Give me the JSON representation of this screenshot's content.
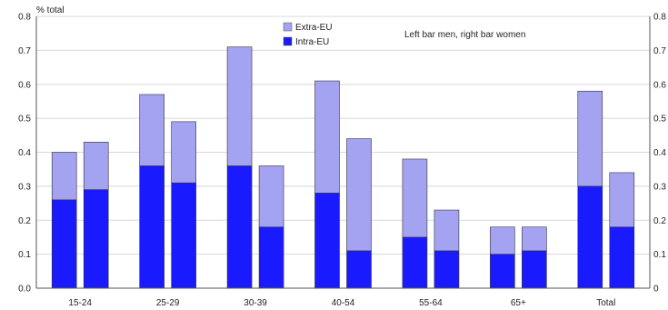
{
  "chart_data": {
    "type": "bar",
    "stacked": true,
    "ylabel": "% total",
    "annotation": "Left bar men, right bar women",
    "ylim": [
      0,
      0.8
    ],
    "yticks": [
      "0.0",
      "0.1",
      "0.2",
      "0.3",
      "0.4",
      "0.5",
      "0.6",
      "0.7",
      "0.8"
    ],
    "yticks_right": [
      "0",
      "0.1",
      "0.2",
      "0.3",
      "0.4",
      "0.5",
      "0.6",
      "0.7",
      "0.8"
    ],
    "grid": true,
    "legend_position": "top-center",
    "categories": [
      "15-24",
      "25-29",
      "30-39",
      "40-54",
      "55-64",
      "65+",
      "Total"
    ],
    "bars_per_category": [
      "men",
      "women"
    ],
    "series": [
      {
        "name": "Intra-EU",
        "color": "#1a1aff",
        "men": [
          0.26,
          0.36,
          0.36,
          0.28,
          0.15,
          0.1,
          0.3
        ],
        "women": [
          0.29,
          0.31,
          0.18,
          0.11,
          0.11,
          0.11,
          0.18
        ]
      },
      {
        "name": "Extra-EU",
        "color": "#a3a3f2",
        "men": [
          0.14,
          0.21,
          0.35,
          0.33,
          0.23,
          0.08,
          0.28
        ],
        "women": [
          0.14,
          0.18,
          0.18,
          0.33,
          0.12,
          0.07,
          0.16
        ]
      }
    ]
  }
}
